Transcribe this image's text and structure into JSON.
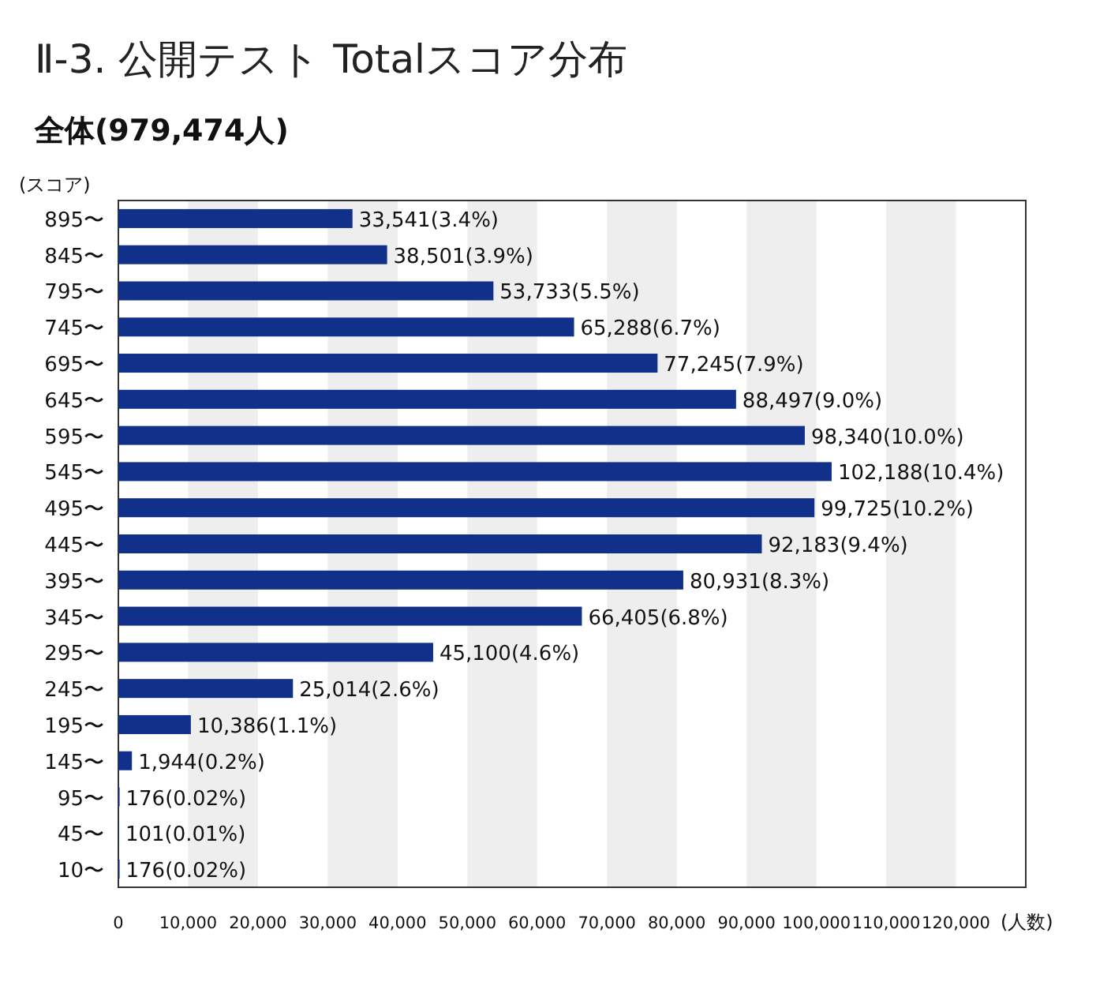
{
  "chart_data": {
    "type": "bar",
    "orientation": "horizontal",
    "title": "Ⅱ-3. 公開テスト Totalスコア分布",
    "subtitle": "全体(979,474人)",
    "ylabel": "(スコア)",
    "xlabel": "(人数)",
    "color": "#10308a",
    "categories": [
      "895〜",
      "845〜",
      "795〜",
      "745〜",
      "695〜",
      "645〜",
      "595〜",
      "545〜",
      "495〜",
      "445〜",
      "395〜",
      "345〜",
      "295〜",
      "245〜",
      "195〜",
      "145〜",
      "95〜",
      "45〜",
      "10〜"
    ],
    "values": [
      33541,
      38501,
      53733,
      65288,
      77245,
      88497,
      98340,
      102188,
      99725,
      92183,
      80931,
      66405,
      45100,
      25014,
      10386,
      1944,
      176,
      101,
      176
    ],
    "value_labels": [
      "33,541(3.4%)",
      "38,501(3.9%)",
      "53,733(5.5%)",
      "65,288(6.7%)",
      "77,245(7.9%)",
      "88,497(9.0%)",
      "98,340(10.0%)",
      "102,188(10.4%)",
      "99,725(10.2%)",
      "92,183(9.4%)",
      "80,931(8.3%)",
      "66,405(6.8%)",
      "45,100(4.6%)",
      "25,014(2.6%)",
      "10,386(1.1%)",
      "1,944(0.2%)",
      "176(0.02%)",
      "101(0.01%)",
      "176(0.02%)"
    ],
    "xlim": [
      0,
      130000
    ],
    "xticks": [
      0,
      {
        "value": 10000,
        "label": "10,000"
      },
      {
        "value": 20000,
        "label": "20,000"
      },
      {
        "value": 30000,
        "label": "30,000"
      },
      {
        "value": 40000,
        "label": "40,000"
      },
      {
        "value": 50000,
        "label": "50,000"
      },
      {
        "value": 60000,
        "label": "60,000"
      },
      {
        "value": 70000,
        "label": "70,000"
      },
      {
        "value": 80000,
        "label": "80,000"
      },
      {
        "value": 90000,
        "label": "90,000"
      },
      {
        "value": 100000,
        "label": "100,000"
      },
      {
        "value": 110000,
        "label": "110,000"
      },
      {
        "value": 120000,
        "label": "120,000"
      }
    ],
    "bands": [
      {
        "axis": "x",
        "from": 10000,
        "to": 20000,
        "color": "#eeeeee"
      },
      {
        "axis": "x",
        "from": 30000,
        "to": 40000,
        "color": "#eeeeee"
      },
      {
        "axis": "x",
        "from": 50000,
        "to": 60000,
        "color": "#eeeeee"
      },
      {
        "axis": "x",
        "from": 70000,
        "to": 80000,
        "color": "#eeeeee"
      },
      {
        "axis": "x",
        "from": 90000,
        "to": 100000,
        "color": "#eeeeee"
      },
      {
        "axis": "x",
        "from": 110000,
        "to": 120000,
        "color": "#eeeeee"
      }
    ]
  }
}
